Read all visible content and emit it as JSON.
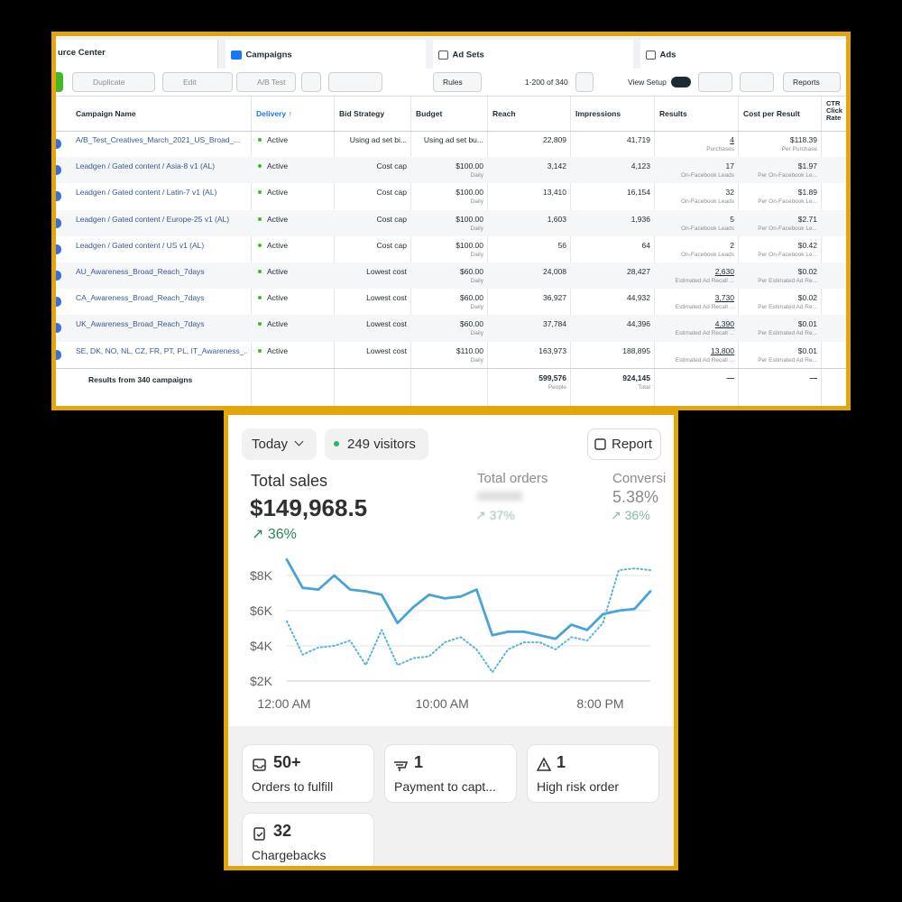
{
  "ads_manager": {
    "tabs": [
      "urce Center",
      "Campaigns",
      "Ad Sets",
      "Ads"
    ],
    "toolbar": {
      "duplicate": "Duplicate",
      "edit": "Edit",
      "ab_test": "A/B Test",
      "rules": "Rules",
      "pagination": "1-200 of 340",
      "view_setup": "View Setup",
      "reports": "Reports"
    },
    "columns": [
      "Campaign Name",
      "Delivery ↑",
      "Bid Strategy",
      "Budget",
      "Reach",
      "Impressions",
      "Results",
      "Cost per Result",
      "CTR Click Rate"
    ],
    "rows": [
      {
        "name": "A/B_Test_Creatives_March_2021_US_Broad_...",
        "delivery": "Active",
        "bid_strategy": "Using ad set bi...",
        "budget": "Using ad set bu...",
        "reach": "22,809",
        "impressions": "41,719",
        "results": "4",
        "results_type": "Purchases",
        "cost_per_result": "$118.39",
        "cost_type": "Per Purchase"
      },
      {
        "name": "Leadgen / Gated content / Asia-8 v1 (AL)",
        "delivery": "Active",
        "bid_strategy": "Cost cap",
        "budget": "$100.00",
        "budget_period": "Daily",
        "reach": "3,142",
        "impressions": "4,123",
        "results": "17",
        "results_type": "On-Facebook Leads",
        "cost_per_result": "$1.97",
        "cost_type": "Per On-Facebook Le..."
      },
      {
        "name": "Leadgen / Gated content / Latin-7 v1 (AL)",
        "delivery": "Active",
        "bid_strategy": "Cost cap",
        "budget": "$100.00",
        "budget_period": "Daily",
        "reach": "13,410",
        "impressions": "16,154",
        "results": "32",
        "results_type": "On-Facebook Leads",
        "cost_per_result": "$1.89",
        "cost_type": "Per On-Facebook Le..."
      },
      {
        "name": "Leadgen / Gated content / Europe-25 v1 (AL)",
        "delivery": "Active",
        "bid_strategy": "Cost cap",
        "budget": "$100.00",
        "budget_period": "Daily",
        "reach": "1,603",
        "impressions": "1,936",
        "results": "5",
        "results_type": "On-Facebook Leads",
        "cost_per_result": "$2.71",
        "cost_type": "Per On-Facebook Le..."
      },
      {
        "name": "Leadgen / Gated content / US v1 (AL)",
        "delivery": "Active",
        "bid_strategy": "Cost cap",
        "budget": "$100.00",
        "budget_period": "Daily",
        "reach": "56",
        "impressions": "64",
        "results": "2",
        "results_type": "On-Facebook Leads",
        "cost_per_result": "$0.42",
        "cost_type": "Per On-Facebook Le..."
      },
      {
        "name": "AU_Awareness_Broad_Reach_7days",
        "delivery": "Active",
        "bid_strategy": "Lowest cost",
        "budget": "$60.00",
        "budget_period": "Daily",
        "reach": "24,008",
        "impressions": "28,427",
        "results": "2,630",
        "results_type": "Estimated Ad Recall ...",
        "cost_per_result": "$0.02",
        "cost_type": "Per Estimated Ad Re..."
      },
      {
        "name": "CA_Awareness_Broad_Reach_7days",
        "delivery": "Active",
        "bid_strategy": "Lowest cost",
        "budget": "$60.00",
        "budget_period": "Daily",
        "reach": "36,927",
        "impressions": "44,932",
        "results": "3,730",
        "results_type": "Estimated Ad Recall ...",
        "cost_per_result": "$0.02",
        "cost_type": "Per Estimated Ad Re..."
      },
      {
        "name": "UK_Awareness_Broad_Reach_7days",
        "delivery": "Active",
        "bid_strategy": "Lowest cost",
        "budget": "$60.00",
        "budget_period": "Daily",
        "reach": "37,784",
        "impressions": "44,396",
        "results": "4,390",
        "results_type": "Estimated Ad Recall ...",
        "cost_per_result": "$0.01",
        "cost_type": "Per Estimated Ad Re..."
      },
      {
        "name": "SE, DK, NO, NL, CZ, FR, PT, PL, IT_Awareness_...",
        "delivery": "Active",
        "bid_strategy": "Lowest cost",
        "budget": "$110.00",
        "budget_period": "Daily",
        "reach": "163,973",
        "impressions": "188,895",
        "results": "13,800",
        "results_type": "Estimated Ad Recall ...",
        "cost_per_result": "$0.01",
        "cost_type": "Per Estimated Ad Re..."
      }
    ],
    "summary": {
      "label": "Results from 340 campaigns",
      "reach": "599,576",
      "reach_unit": "People",
      "impressions": "924,145",
      "impressions_unit": "Total",
      "results": "—",
      "cost_per_result": "—"
    }
  },
  "store_dashboard": {
    "date_filter": "Today",
    "visitors": "249 visitors",
    "report_button": "Report",
    "total_sales": {
      "label": "Total sales",
      "value": "$149,968.5",
      "change": "↗ 36%"
    },
    "total_orders": {
      "label": "Total orders",
      "change": "↗ 37%"
    },
    "conversion": {
      "label": "Conversi",
      "value": "5.38%",
      "change": "↗ 36%"
    },
    "cards": [
      {
        "value": "50+",
        "label": "Orders to fulfill"
      },
      {
        "value": "1",
        "label": "Payment to capt..."
      },
      {
        "value": "1",
        "label": "High risk order"
      },
      {
        "value": "32",
        "label": "Chargebacks"
      }
    ]
  },
  "chart_data": {
    "type": "line",
    "x": [
      0,
      1,
      2,
      3,
      4,
      5,
      6,
      7,
      8,
      9,
      10,
      11,
      12,
      13,
      14,
      15,
      16,
      17,
      18,
      19,
      20,
      21,
      22,
      23
    ],
    "xlim": [
      0,
      23
    ],
    "xticks": [
      {
        "value": 0,
        "label": "12:00 AM"
      },
      {
        "value": 10,
        "label": "10:00 AM"
      },
      {
        "value": 20,
        "label": "8:00 PM"
      }
    ],
    "ylim": [
      2000,
      9000
    ],
    "yticks": [
      {
        "value": 2000,
        "label": "$2K"
      },
      {
        "value": 4000,
        "label": "$4K"
      },
      {
        "value": 6000,
        "label": "$6K"
      },
      {
        "value": 8000,
        "label": "$8K"
      }
    ],
    "grid": true,
    "series": [
      {
        "color": "#4aa3d6",
        "style": "solid",
        "values": [
          8900,
          7300,
          7200,
          8000,
          7200,
          7100,
          6900,
          5300,
          6200,
          6900,
          6700,
          6800,
          7200,
          4600,
          4800,
          4800,
          4600,
          4400,
          5200,
          4900,
          5800,
          6000,
          6100,
          7100
        ]
      },
      {
        "color": "#5ab4d8",
        "style": "dotted",
        "values": [
          5400,
          3500,
          3900,
          4000,
          4300,
          2900,
          4900,
          2900,
          3300,
          3400,
          4200,
          4500,
          3800,
          2500,
          3800,
          4200,
          4200,
          3800,
          4500,
          4300,
          5300,
          8300,
          8400,
          8300
        ]
      }
    ]
  }
}
